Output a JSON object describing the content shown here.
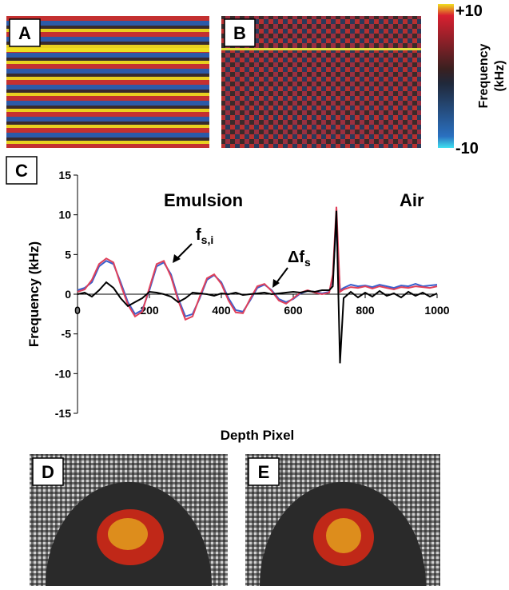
{
  "panel_labels": [
    "A",
    "B",
    "C",
    "D",
    "E"
  ],
  "colorbar": {
    "max_label": "+10",
    "min_label": "-10",
    "title": [
      "Frequency",
      "(kHz)"
    ]
  },
  "chart_data": {
    "type": "line",
    "xlabel": "Depth Pixel",
    "ylabel": "Frequency (kHz)",
    "annotations": [
      "Emulsion",
      "Air"
    ],
    "series_labels": [
      {
        "text": "f",
        "sub": "s,i"
      },
      {
        "text": "Δf",
        "sub": "s"
      }
    ],
    "x": [
      0,
      20,
      40,
      60,
      80,
      100,
      120,
      140,
      160,
      180,
      200,
      220,
      240,
      260,
      280,
      300,
      320,
      340,
      360,
      380,
      400,
      420,
      440,
      460,
      480,
      500,
      520,
      540,
      560,
      580,
      600,
      620,
      640,
      660,
      680,
      700,
      710,
      720,
      730,
      740,
      760,
      780,
      800,
      820,
      840,
      860,
      880,
      900,
      920,
      940,
      960,
      980,
      1000
    ],
    "series": [
      {
        "color": "#3a5fcd",
        "values": [
          0.5,
          0.8,
          1.5,
          3.5,
          4.2,
          3.8,
          1.5,
          -1,
          -2.5,
          -2,
          0.5,
          3.5,
          4,
          2.5,
          -0.5,
          -2.8,
          -2.5,
          -0.5,
          1.8,
          2.4,
          1.5,
          -0.5,
          -2,
          -2.2,
          -0.8,
          0.8,
          1.2,
          0.5,
          -0.6,
          -1,
          -0.6,
          0.1,
          0.4,
          0.3,
          0.1,
          0.3,
          2,
          9,
          0.5,
          0.8,
          1.2,
          1,
          1.1,
          0.9,
          1.2,
          1,
          0.8,
          1.1,
          1,
          1.3,
          1,
          1.1,
          1.2
        ]
      },
      {
        "color": "#e0405a",
        "values": [
          0.3,
          0.6,
          1.8,
          3.8,
          4.5,
          4,
          1.2,
          -1.3,
          -2.8,
          -2.2,
          0.8,
          3.8,
          4.2,
          2.2,
          -0.8,
          -3.2,
          -2.8,
          -0.3,
          2,
          2.5,
          1.3,
          -0.8,
          -2.3,
          -2.4,
          -0.6,
          1,
          1.3,
          0.4,
          -0.8,
          -1.2,
          -0.5,
          0.2,
          0.5,
          0.2,
          0,
          0.2,
          2.5,
          11,
          0.3,
          0.6,
          0.9,
          0.8,
          1,
          0.7,
          1,
          0.8,
          0.6,
          0.9,
          0.8,
          1,
          0.9,
          0.8,
          1
        ]
      },
      {
        "color": "#000000",
        "values": [
          0,
          0.2,
          -0.3,
          0.5,
          1.5,
          0.8,
          -0.5,
          -1.5,
          -1,
          -0.5,
          0.3,
          0.2,
          0,
          -0.3,
          -1,
          -0.5,
          0.2,
          0.1,
          0,
          -0.2,
          0.1,
          0,
          0.2,
          -0.1,
          0,
          0.1,
          0.2,
          0,
          0.1,
          0.2,
          0.3,
          0.2,
          0.4,
          0.3,
          0.5,
          0.5,
          1,
          10.5,
          -8.7,
          -0.5,
          0.3,
          -0.4,
          0.2,
          -0.3,
          0.4,
          -0.2,
          0.1,
          -0.4,
          0.3,
          -0.2,
          0.2,
          -0.3,
          0.1
        ]
      }
    ],
    "xlim": [
      0,
      1000
    ],
    "xticks": [
      0,
      200,
      400,
      600,
      800,
      1000
    ],
    "ylim": [
      -15,
      15
    ],
    "yticks": [
      -15,
      -10,
      -5,
      0,
      5,
      10,
      15
    ]
  }
}
